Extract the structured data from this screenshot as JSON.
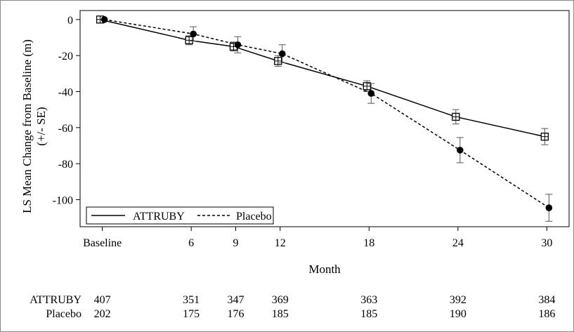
{
  "chart_data": {
    "type": "line",
    "xlabel": "Month",
    "ylabel_line1": "LS Mean Change from Baseline (m)",
    "ylabel_line2": "(+/- SE)",
    "x": [
      0,
      6,
      9,
      12,
      18,
      24,
      30
    ],
    "x_tick_labels": [
      "Baseline",
      "6",
      "9",
      "12",
      "18",
      "24",
      "30"
    ],
    "y_ticks": [
      0,
      -20,
      -40,
      -60,
      -80,
      -100
    ],
    "ylim": [
      -115,
      5
    ],
    "xlim": [
      -1.5,
      31.5
    ],
    "grid": false,
    "legend_position": "bottom-left",
    "series": [
      {
        "name": "ATTRUBY",
        "line_style": "solid",
        "marker": "open-square",
        "values": [
          0,
          -11.5,
          -15,
          -23,
          -37,
          -54,
          -65
        ],
        "se": [
          0.5,
          2.5,
          2.5,
          3,
          3,
          4,
          4.5
        ],
        "n_at_risk": [
          "407",
          "351",
          "347",
          "369",
          "363",
          "392",
          "384"
        ]
      },
      {
        "name": "Placebo",
        "line_style": "dashed",
        "marker": "filled-circle",
        "values": [
          0,
          -8,
          -14,
          -19,
          -41,
          -72.5,
          -104.5
        ],
        "se": [
          0.5,
          4,
          4.5,
          5,
          5.5,
          7,
          7.5
        ],
        "n_at_risk": [
          "202",
          "175",
          "176",
          "185",
          "185",
          "190",
          "186"
        ]
      }
    ]
  }
}
